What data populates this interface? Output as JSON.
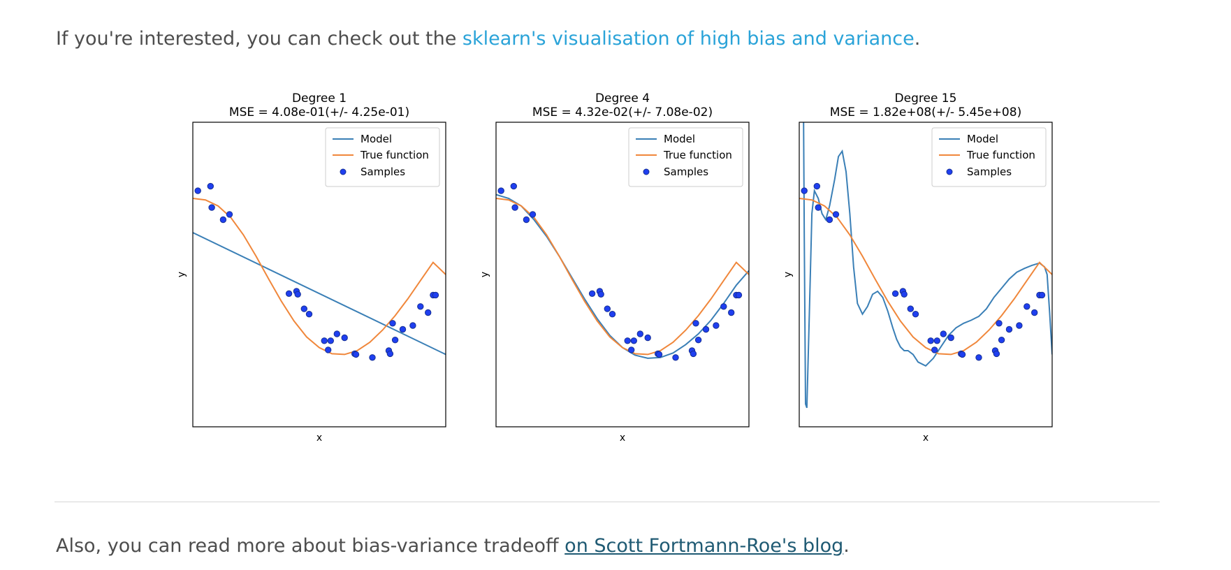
{
  "intro": {
    "before": "If you're interested, you can check out the ",
    "link": "sklearn's visualisation of high bias and variance",
    "after": "."
  },
  "outro": {
    "before": "Also, you can read more about bias-variance tradeoff ",
    "link": "on Scott Fortmann-Roe's blog",
    "after": "."
  },
  "colors": {
    "model": "#3a7fb6",
    "true_function": "#f0873b",
    "samples": "#1f3ff0",
    "sample_edge": "#163094"
  },
  "chart_data": [
    {
      "type": "line",
      "title": "Degree 1",
      "subtitle": "MSE = 4.08e-01(+/- 4.25e-01)",
      "xlabel": "x",
      "ylabel": "y",
      "xlim": [
        0,
        1
      ],
      "ylim": [
        -2,
        2
      ],
      "legend": "top-right",
      "grid": false,
      "legend_entries": [
        "Model",
        "True function",
        "Samples"
      ],
      "model": {
        "name": "Model",
        "x": [
          0,
          1
        ],
        "y": [
          0.55,
          -1.05
        ]
      }
    },
    {
      "type": "line",
      "title": "Degree 4",
      "subtitle": "MSE = 4.32e-02(+/- 7.08e-02)",
      "xlabel": "x",
      "ylabel": "y",
      "xlim": [
        0,
        1
      ],
      "ylim": [
        -2,
        2
      ],
      "legend": "top-right",
      "grid": false,
      "legend_entries": [
        "Model",
        "True function",
        "Samples"
      ],
      "model": {
        "name": "Model",
        "x": [
          0,
          0.05,
          0.1,
          0.15,
          0.2,
          0.25,
          0.3,
          0.35,
          0.4,
          0.45,
          0.5,
          0.55,
          0.6,
          0.65,
          0.7,
          0.75,
          0.8,
          0.85,
          0.9,
          0.95,
          1.0
        ],
        "y": [
          1.05,
          1.0,
          0.9,
          0.72,
          0.5,
          0.24,
          -0.04,
          -0.32,
          -0.58,
          -0.8,
          -0.96,
          -1.06,
          -1.1,
          -1.09,
          -1.03,
          -0.92,
          -0.78,
          -0.6,
          -0.38,
          -0.14,
          0.05
        ]
      }
    },
    {
      "type": "line",
      "title": "Degree 15",
      "subtitle": "MSE = 1.82e+08(+/- 5.45e+08)",
      "xlabel": "x",
      "ylabel": "y",
      "xlim": [
        0,
        1
      ],
      "ylim": [
        -2,
        2
      ],
      "legend": "top-right",
      "grid": false,
      "legend_entries": [
        "Model",
        "True function",
        "Samples"
      ],
      "model": {
        "name": "Model",
        "x": [
          0.017,
          0.02,
          0.025,
          0.03,
          0.04,
          0.05,
          0.06,
          0.075,
          0.09,
          0.105,
          0.12,
          0.14,
          0.155,
          0.17,
          0.185,
          0.2,
          0.215,
          0.23,
          0.25,
          0.27,
          0.29,
          0.31,
          0.33,
          0.35,
          0.37,
          0.385,
          0.4,
          0.415,
          0.43,
          0.45,
          0.47,
          0.5,
          0.53,
          0.56,
          0.59,
          0.62,
          0.65,
          0.68,
          0.71,
          0.74,
          0.77,
          0.8,
          0.83,
          0.86,
          0.89,
          0.92,
          0.95,
          0.97,
          0.98,
          0.99,
          1.0
        ],
        "y": [
          2.02,
          0.5,
          -1.7,
          -1.75,
          -0.5,
          0.8,
          1.1,
          1.0,
          0.8,
          0.72,
          0.9,
          1.25,
          1.55,
          1.62,
          1.35,
          0.8,
          0.1,
          -0.38,
          -0.52,
          -0.42,
          -0.26,
          -0.22,
          -0.3,
          -0.48,
          -0.7,
          -0.85,
          -0.95,
          -1.0,
          -1.0,
          -1.05,
          -1.15,
          -1.2,
          -1.1,
          -0.95,
          -0.8,
          -0.7,
          -0.64,
          -0.6,
          -0.55,
          -0.45,
          -0.3,
          -0.18,
          -0.06,
          0.03,
          0.08,
          0.12,
          0.15,
          0.1,
          0.0,
          -0.5,
          -1.05
        ]
      }
    }
  ],
  "true_function": {
    "name": "True function",
    "x": [
      0,
      0.05,
      0.1,
      0.15,
      0.2,
      0.25,
      0.3,
      0.35,
      0.4,
      0.45,
      0.5,
      0.55,
      0.6,
      0.65,
      0.7,
      0.75,
      0.8,
      0.85,
      0.9,
      0.95,
      1.0
    ],
    "y": [
      1.0,
      0.98,
      0.9,
      0.75,
      0.52,
      0.24,
      -0.06,
      -0.35,
      -0.61,
      -0.82,
      -0.96,
      -1.04,
      -1.05,
      -1.0,
      -0.89,
      -0.73,
      -0.54,
      -0.32,
      -0.08,
      0.16,
      0.0
    ]
  },
  "samples": {
    "name": "Samples",
    "x": [
      0.02,
      0.07,
      0.075,
      0.12,
      0.145,
      0.38,
      0.41,
      0.415,
      0.44,
      0.46,
      0.52,
      0.535,
      0.545,
      0.57,
      0.6,
      0.64,
      0.645,
      0.71,
      0.775,
      0.78,
      0.79,
      0.8,
      0.83,
      0.87,
      0.9,
      0.93,
      0.95,
      0.96
    ],
    "y": [
      1.1,
      1.16,
      0.88,
      0.72,
      0.79,
      -0.25,
      -0.22,
      -0.26,
      -0.45,
      -0.52,
      -0.87,
      -0.99,
      -0.87,
      -0.78,
      -0.83,
      -1.04,
      -1.05,
      -1.09,
      -1.0,
      -1.04,
      -0.64,
      -0.86,
      -0.72,
      -0.67,
      -0.42,
      -0.5,
      -0.27,
      -0.27
    ]
  }
}
